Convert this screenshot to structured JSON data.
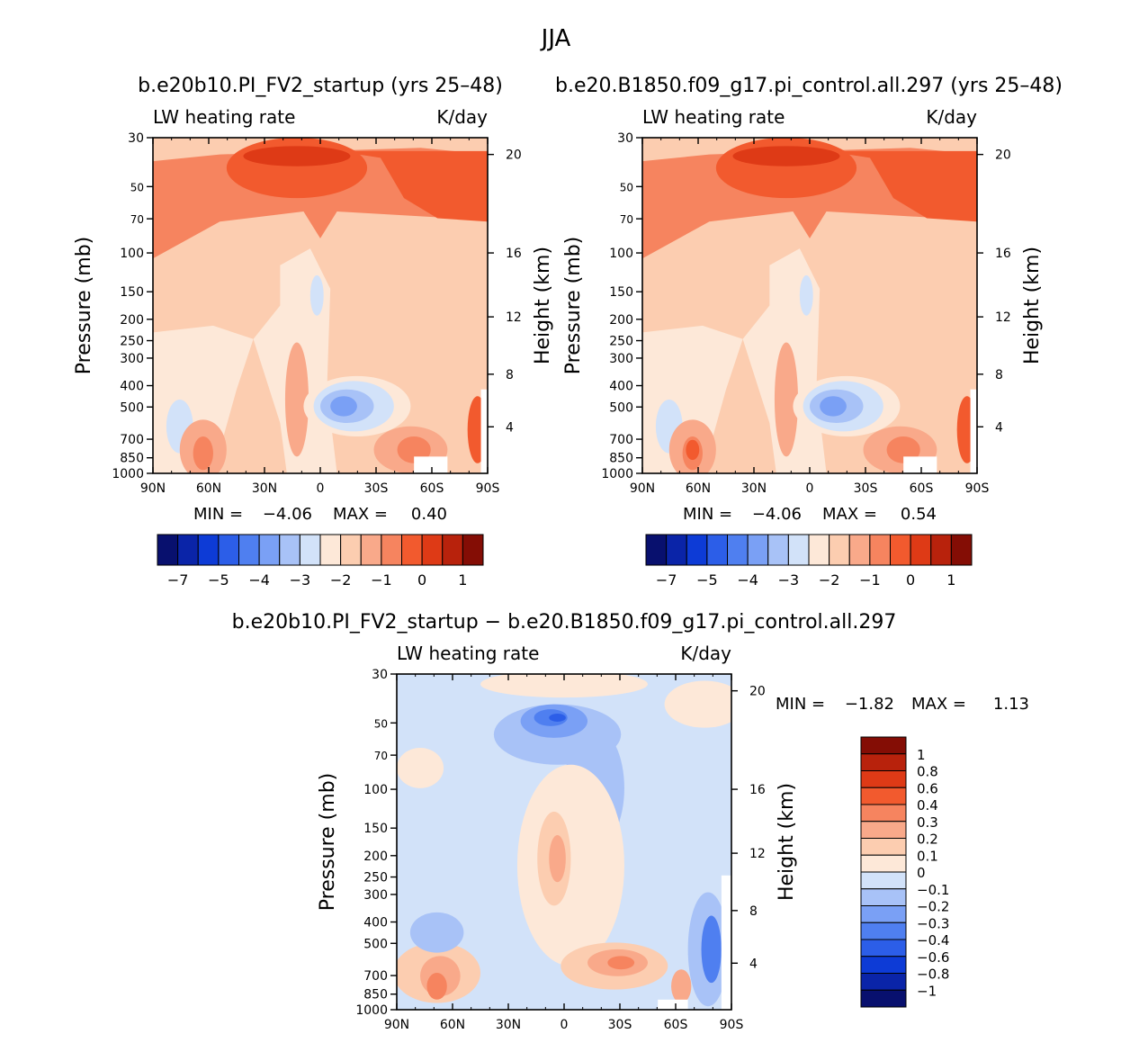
{
  "title": "JJA",
  "chart_data": [
    {
      "type": "contour",
      "title": "b.e20b10.PI_FV2_startup (yrs 25–48)",
      "subtitle_left": "LW heating rate",
      "subtitle_right": "K/day",
      "ylabel": "Pressure (mb)",
      "ylabel_right": "Height (km)",
      "x_ticks": [
        "90N",
        "60N",
        "30N",
        "0",
        "30S",
        "60S",
        "90S"
      ],
      "y_ticks": [
        "30",
        "50",
        "70",
        "100",
        "150",
        "200",
        "250",
        "300",
        "400",
        "500",
        "700",
        "850",
        "1000"
      ],
      "y_ticks_right": [
        "20",
        "16",
        "12",
        "8",
        "4"
      ],
      "ylim": [
        1000,
        30
      ],
      "min_label": "MIN =",
      "min_value": "−4.06",
      "max_label": "MAX =",
      "max_value": "0.40",
      "colorbar_labels": [
        "−7",
        "−5",
        "−4",
        "−3",
        "−2",
        "−1",
        "0",
        "1"
      ]
    },
    {
      "type": "contour",
      "title": "b.e20.B1850.f09_g17.pi_control.all.297 (yrs 25–48)",
      "subtitle_left": "LW heating rate",
      "subtitle_right": "K/day",
      "ylabel": "Pressure (mb)",
      "ylabel_right": "Height (km)",
      "x_ticks": [
        "90N",
        "60N",
        "30N",
        "0",
        "30S",
        "60S",
        "90S"
      ],
      "y_ticks": [
        "30",
        "50",
        "70",
        "100",
        "150",
        "200",
        "250",
        "300",
        "400",
        "500",
        "700",
        "850",
        "1000"
      ],
      "y_ticks_right": [
        "20",
        "16",
        "12",
        "8",
        "4"
      ],
      "ylim": [
        1000,
        30
      ],
      "min_label": "MIN =",
      "min_value": "−4.06",
      "max_label": "MAX =",
      "max_value": "0.54",
      "colorbar_labels": [
        "−7",
        "−5",
        "−4",
        "−3",
        "−2",
        "−1",
        "0",
        "1"
      ]
    },
    {
      "type": "contour",
      "title": "b.e20b10.PI_FV2_startup − b.e20.B1850.f09_g17.pi_control.all.297",
      "subtitle_left": "LW heating rate",
      "subtitle_right": "K/day",
      "ylabel": "Pressure (mb)",
      "ylabel_right": "Height (km)",
      "x_ticks": [
        "90N",
        "60N",
        "30N",
        "0",
        "30S",
        "60S",
        "90S"
      ],
      "y_ticks": [
        "30",
        "50",
        "70",
        "100",
        "150",
        "200",
        "250",
        "300",
        "400",
        "500",
        "700",
        "850",
        "1000"
      ],
      "y_ticks_right": [
        "20",
        "16",
        "12",
        "8",
        "4"
      ],
      "ylim": [
        1000,
        30
      ],
      "min_label": "MIN =",
      "min_value": "−1.82",
      "max_label": "MAX =",
      "max_value": "1.13",
      "colorbar_labels": [
        "1",
        "0.8",
        "0.6",
        "0.4",
        "0.3",
        "0.2",
        "0.1",
        "0",
        "−0.1",
        "−0.2",
        "−0.3",
        "−0.4",
        "−0.6",
        "−0.8",
        "−1"
      ]
    }
  ],
  "palette": [
    "#08106e",
    "#0a24a8",
    "#0d3bd6",
    "#2c5ee8",
    "#4f7ff0",
    "#7aa0f5",
    "#a8c2f7",
    "#d2e2f9",
    "#fde8d8",
    "#fccdb0",
    "#f9a98a",
    "#f6845f",
    "#f25a2e",
    "#de3a16",
    "#b8220c",
    "#840d05"
  ]
}
